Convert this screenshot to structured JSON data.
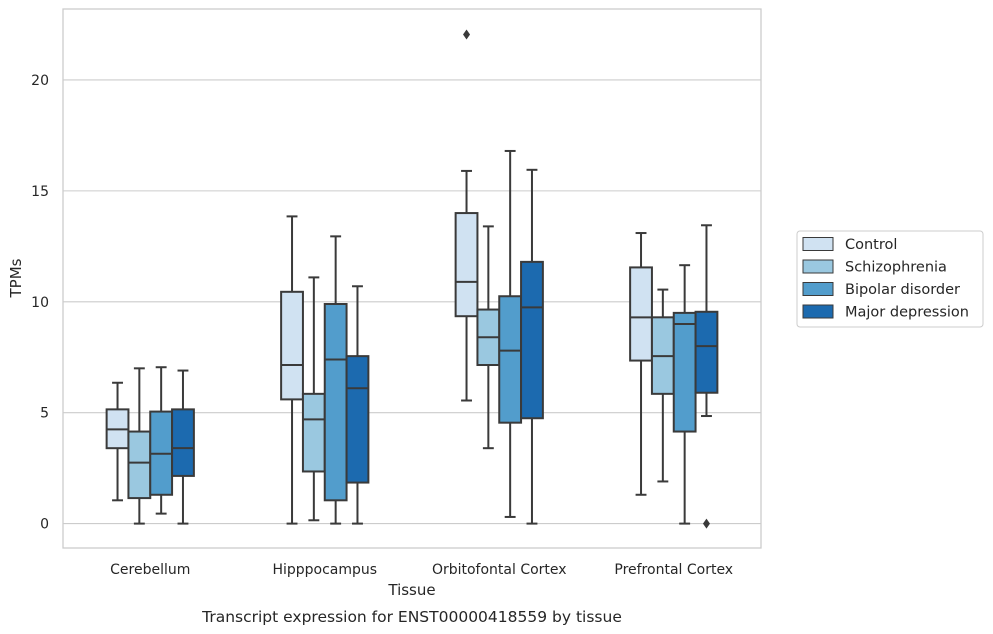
{
  "chart_data": {
    "type": "box",
    "title": "Transcript expression for ENST00000418559 by tissue",
    "xlabel": "Tissue",
    "ylabel": "TPMs",
    "ylim": [
      -1.1,
      23.2
    ],
    "yticks": [
      0,
      5,
      10,
      15,
      20
    ],
    "grid": true,
    "legend_position": "right",
    "categories": [
      "Cerebellum",
      "Hipppocampus",
      "Orbitofontal Cortex",
      "Prefrontal Cortex"
    ],
    "series": [
      {
        "name": "Control",
        "color": "#d0e2f2",
        "boxes": [
          {
            "whisker_low": 1.05,
            "q1": 3.4,
            "median": 4.25,
            "q3": 5.15,
            "whisker_high": 6.35,
            "outliers": []
          },
          {
            "whisker_low": 0.0,
            "q1": 5.6,
            "median": 7.15,
            "q3": 10.45,
            "whisker_high": 13.85,
            "outliers": []
          },
          {
            "whisker_low": 5.55,
            "q1": 9.35,
            "median": 10.9,
            "q3": 14.0,
            "whisker_high": 15.9,
            "outliers": [
              22.05
            ]
          },
          {
            "whisker_low": 1.3,
            "q1": 7.35,
            "median": 9.3,
            "q3": 11.55,
            "whisker_high": 13.1,
            "outliers": []
          }
        ]
      },
      {
        "name": "Schizophrenia",
        "color": "#9ac8e0",
        "boxes": [
          {
            "whisker_low": 0.0,
            "q1": 1.15,
            "median": 2.75,
            "q3": 4.15,
            "whisker_high": 7.0,
            "outliers": []
          },
          {
            "whisker_low": 0.15,
            "q1": 2.35,
            "median": 4.7,
            "q3": 5.85,
            "whisker_high": 11.1,
            "outliers": []
          },
          {
            "whisker_low": 3.4,
            "q1": 7.15,
            "median": 8.4,
            "q3": 9.65,
            "whisker_high": 13.4,
            "outliers": []
          },
          {
            "whisker_low": 1.9,
            "q1": 5.85,
            "median": 7.55,
            "q3": 9.3,
            "whisker_high": 10.55,
            "outliers": []
          }
        ]
      },
      {
        "name": "Bipolar disorder",
        "color": "#529dcc",
        "boxes": [
          {
            "whisker_low": 0.45,
            "q1": 1.3,
            "median": 3.15,
            "q3": 5.05,
            "whisker_high": 7.05,
            "outliers": []
          },
          {
            "whisker_low": 0.0,
            "q1": 1.05,
            "median": 7.4,
            "q3": 9.9,
            "whisker_high": 12.95,
            "outliers": []
          },
          {
            "whisker_low": 0.3,
            "q1": 4.55,
            "median": 7.8,
            "q3": 10.25,
            "whisker_high": 16.8,
            "outliers": []
          },
          {
            "whisker_low": 0.0,
            "q1": 4.15,
            "median": 9.0,
            "q3": 9.5,
            "whisker_high": 11.65,
            "outliers": []
          }
        ]
      },
      {
        "name": "Major depression",
        "color": "#1c6aaf",
        "boxes": [
          {
            "whisker_low": 0.0,
            "q1": 2.15,
            "median": 3.4,
            "q3": 5.15,
            "whisker_high": 6.9,
            "outliers": []
          },
          {
            "whisker_low": 0.0,
            "q1": 1.85,
            "median": 6.1,
            "q3": 7.55,
            "whisker_high": 10.7,
            "outliers": []
          },
          {
            "whisker_low": 0.0,
            "q1": 4.75,
            "median": 9.75,
            "q3": 11.8,
            "whisker_high": 15.95,
            "outliers": []
          },
          {
            "whisker_low": 4.85,
            "q1": 5.9,
            "median": 8.0,
            "q3": 9.55,
            "whisker_high": 13.45,
            "outliers": [
              0.0
            ]
          }
        ]
      }
    ]
  }
}
